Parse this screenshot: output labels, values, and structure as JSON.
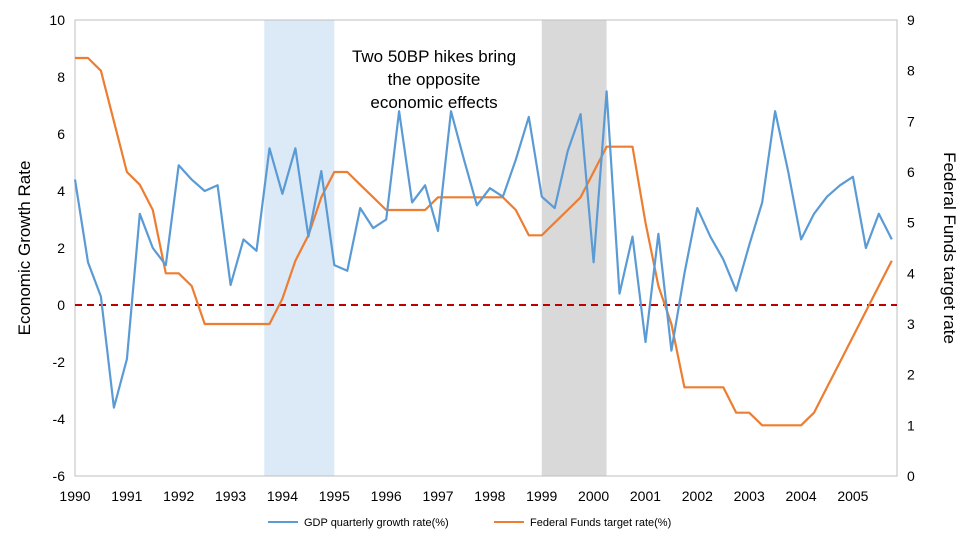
{
  "chart_data": {
    "type": "line",
    "xlim": [
      1990,
      2005.85
    ],
    "y_left": {
      "label": "Economic Growth Rate",
      "lim": [
        -6,
        10
      ],
      "ticks": [
        -6,
        -4,
        -2,
        0,
        2,
        4,
        6,
        8,
        10
      ]
    },
    "y_right": {
      "label": "Federal Funds target rate",
      "lim": [
        0,
        9
      ],
      "ticks": [
        0,
        1,
        2,
        3,
        4,
        5,
        6,
        7,
        8,
        9
      ]
    },
    "x_ticks": [
      1990,
      1991,
      1992,
      1993,
      1994,
      1995,
      1996,
      1997,
      1998,
      1999,
      2000,
      2001,
      2002,
      2003,
      2004,
      2005
    ],
    "annotation": [
      "Two 50BP hikes bring",
      "the opposite",
      "economic effects"
    ],
    "shaded_periods": [
      {
        "x0": 1993.65,
        "x1": 1995.0,
        "color": "#dce9f6"
      },
      {
        "x0": 1999.0,
        "x1": 2000.25,
        "color": "#d9d9d9"
      }
    ],
    "reference_line": {
      "y": 0,
      "axis": "left",
      "color": "#c00000",
      "style": "dashed"
    },
    "series": [
      {
        "name": "GDP quarterly growth rate(%)",
        "axis": "left",
        "color": "#5b9bd5",
        "x": [
          1990.0,
          1990.25,
          1990.5,
          1990.75,
          1991.0,
          1991.25,
          1991.5,
          1991.75,
          1992.0,
          1992.25,
          1992.5,
          1992.75,
          1993.0,
          1993.25,
          1993.5,
          1993.75,
          1994.0,
          1994.25,
          1994.5,
          1994.75,
          1995.0,
          1995.25,
          1995.5,
          1995.75,
          1996.0,
          1996.25,
          1996.5,
          1996.75,
          1997.0,
          1997.25,
          1997.5,
          1997.75,
          1998.0,
          1998.25,
          1998.5,
          1998.75,
          1999.0,
          1999.25,
          1999.5,
          1999.75,
          2000.0,
          2000.25,
          2000.5,
          2000.75,
          2001.0,
          2001.25,
          2001.5,
          2001.75,
          2002.0,
          2002.25,
          2002.5,
          2002.75,
          2003.0,
          2003.25,
          2003.5,
          2003.75,
          2004.0,
          2004.25,
          2004.5,
          2004.75,
          2005.0,
          2005.25,
          2005.5,
          2005.75
        ],
        "y": [
          4.4,
          1.5,
          0.3,
          -3.6,
          -1.9,
          3.2,
          2.0,
          1.4,
          4.9,
          4.4,
          4.0,
          4.2,
          0.7,
          2.3,
          1.9,
          5.5,
          3.9,
          5.5,
          2.4,
          4.7,
          1.4,
          1.2,
          3.4,
          2.7,
          3.0,
          6.8,
          3.6,
          4.2,
          2.6,
          6.8,
          5.1,
          3.5,
          4.1,
          3.8,
          5.1,
          6.6,
          3.8,
          3.4,
          5.4,
          6.7,
          1.5,
          7.5,
          0.4,
          2.4,
          -1.3,
          2.5,
          -1.6,
          1.1,
          3.4,
          2.4,
          1.6,
          0.5,
          2.1,
          3.6,
          6.8,
          4.7,
          2.3,
          3.2,
          3.8,
          4.2,
          4.5,
          2.0,
          3.2,
          2.3
        ]
      },
      {
        "name": "Federal Funds target rate(%)",
        "axis": "right",
        "color": "#ed7d31",
        "x": [
          1990.0,
          1990.25,
          1990.5,
          1990.75,
          1991.0,
          1991.25,
          1991.5,
          1991.75,
          1992.0,
          1992.25,
          1992.5,
          1992.75,
          1993.0,
          1993.25,
          1993.5,
          1993.75,
          1994.0,
          1994.25,
          1994.5,
          1994.75,
          1995.0,
          1995.25,
          1995.5,
          1995.75,
          1996.0,
          1996.25,
          1996.5,
          1996.75,
          1997.0,
          1997.25,
          1997.5,
          1997.75,
          1998.0,
          1998.25,
          1998.5,
          1998.75,
          1999.0,
          1999.25,
          1999.5,
          1999.75,
          2000.0,
          2000.25,
          2000.5,
          2000.75,
          2001.0,
          2001.25,
          2001.5,
          2001.75,
          2002.0,
          2002.25,
          2002.5,
          2002.75,
          2003.0,
          2003.25,
          2003.5,
          2003.75,
          2004.0,
          2004.25,
          2004.5,
          2004.75,
          2005.0,
          2005.25,
          2005.5,
          2005.75
        ],
        "y": [
          8.25,
          8.25,
          8.0,
          7.0,
          6.0,
          5.75,
          5.25,
          4.0,
          4.0,
          3.75,
          3.0,
          3.0,
          3.0,
          3.0,
          3.0,
          3.0,
          3.5,
          4.25,
          4.75,
          5.5,
          6.0,
          6.0,
          5.75,
          5.5,
          5.25,
          5.25,
          5.25,
          5.25,
          5.5,
          5.5,
          5.5,
          5.5,
          5.5,
          5.5,
          5.25,
          4.75,
          4.75,
          5.0,
          5.25,
          5.5,
          6.0,
          6.5,
          6.5,
          6.5,
          5.0,
          3.75,
          3.0,
          1.75,
          1.75,
          1.75,
          1.75,
          1.25,
          1.25,
          1.0,
          1.0,
          1.0,
          1.0,
          1.25,
          1.75,
          2.25,
          2.75,
          3.25,
          3.75,
          4.25
        ]
      }
    ],
    "legend_position": "bottom"
  }
}
